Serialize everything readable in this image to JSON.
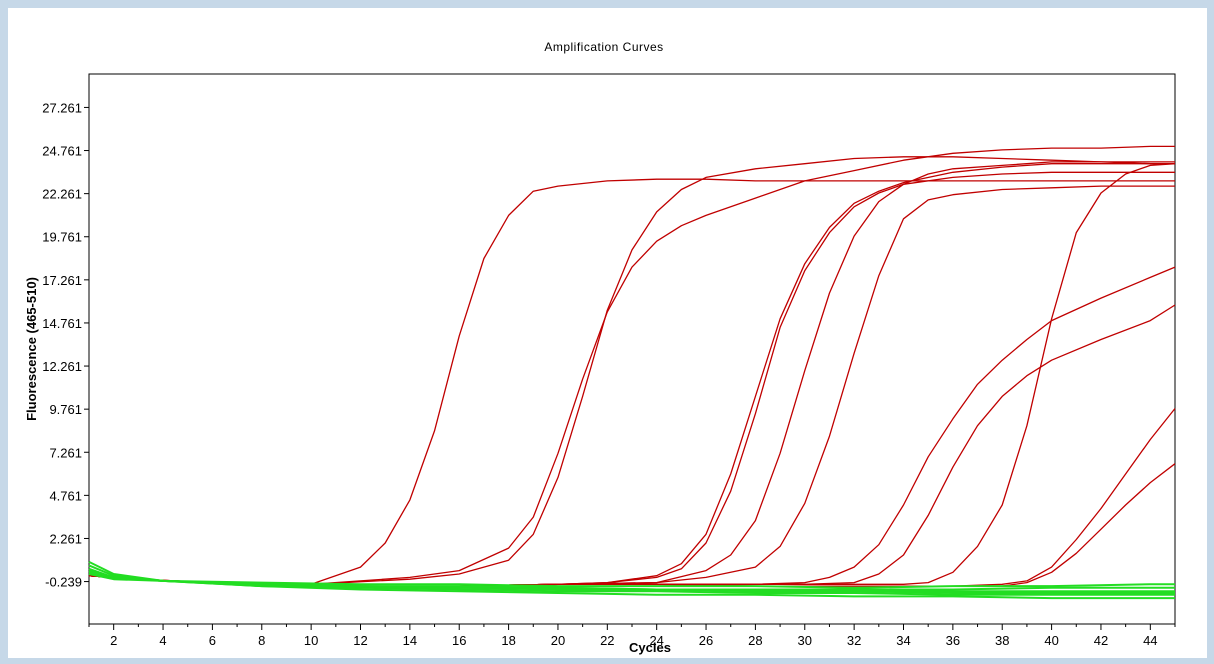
{
  "chart_data": {
    "type": "line",
    "title": "Amplification Curves",
    "xlabel": "Cycles",
    "ylabel": "Fluorescence (465-510)",
    "xlim": [
      1,
      45
    ],
    "ylim": [
      -2.7,
      29.2
    ],
    "x_ticks": [
      2,
      4,
      6,
      8,
      10,
      12,
      14,
      16,
      18,
      20,
      22,
      24,
      26,
      28,
      30,
      32,
      34,
      36,
      38,
      40,
      42,
      44
    ],
    "x_tick_labels": [
      "2",
      "4",
      "6",
      "8",
      "10",
      "12",
      "14",
      "16",
      "18",
      "20",
      "22",
      "24",
      "26",
      "28",
      "30",
      "32",
      "34",
      "36",
      "38",
      "40",
      "42",
      "44"
    ],
    "y_ticks": [
      -0.239,
      2.261,
      4.761,
      7.261,
      9.761,
      12.261,
      14.761,
      17.261,
      19.761,
      22.261,
      24.761,
      27.261
    ],
    "y_tick_labels": [
      "-0.239",
      "2.261",
      "4.761",
      "7.261",
      "9.761",
      "12.261",
      "14.761",
      "17.261",
      "19.761",
      "22.261",
      "24.761",
      "27.261"
    ],
    "grid": false,
    "legend": "none",
    "colors": {
      "positive": "#c00000",
      "negative": "#22dd22",
      "background": "#c6d8e8"
    },
    "series": [
      {
        "color": "#c00000",
        "x": [
          1,
          3,
          6,
          10,
          12,
          13,
          14,
          15,
          16,
          17,
          18,
          19,
          20,
          22,
          24,
          26,
          28,
          30,
          33,
          36,
          40,
          44,
          45
        ],
        "y": [
          0.1,
          -0.1,
          -0.3,
          -0.4,
          0.6,
          2.0,
          4.5,
          8.5,
          14.0,
          18.5,
          21.0,
          22.4,
          22.7,
          23.0,
          23.1,
          23.1,
          23.0,
          23.0,
          23.0,
          23.0,
          23.0,
          23.0,
          23.0
        ]
      },
      {
        "color": "#c00000",
        "x": [
          1,
          3,
          6,
          10,
          14,
          16,
          18,
          19,
          20,
          21,
          22,
          23,
          24,
          25,
          26,
          28,
          30,
          32,
          34,
          36,
          38,
          40,
          42,
          44,
          45
        ],
        "y": [
          0.1,
          -0.1,
          -0.3,
          -0.4,
          0.0,
          0.4,
          1.7,
          3.5,
          7.2,
          11.5,
          15.4,
          18.0,
          19.5,
          20.4,
          21.0,
          22.0,
          23.0,
          23.6,
          24.2,
          24.6,
          24.8,
          24.9,
          24.9,
          25.0,
          25.0
        ]
      },
      {
        "color": "#c00000",
        "x": [
          1,
          3,
          6,
          10,
          14,
          16,
          18,
          19,
          20,
          21,
          22,
          23,
          24,
          25,
          26,
          28,
          30,
          32,
          34,
          36,
          38,
          40,
          42,
          44,
          45
        ],
        "y": [
          0.1,
          -0.1,
          -0.3,
          -0.4,
          -0.1,
          0.2,
          1.0,
          2.5,
          5.8,
          10.5,
          15.5,
          19.0,
          21.2,
          22.5,
          23.2,
          23.7,
          24.0,
          24.3,
          24.4,
          24.4,
          24.3,
          24.2,
          24.1,
          24.0,
          24.0
        ]
      },
      {
        "color": "#c00000",
        "x": [
          1,
          4,
          8,
          12,
          16,
          20,
          22,
          24,
          25,
          26,
          27,
          28,
          29,
          30,
          31,
          32,
          33,
          34,
          36,
          38,
          40,
          42,
          44,
          45
        ],
        "y": [
          0.1,
          -0.2,
          -0.4,
          -0.5,
          -0.5,
          -0.4,
          -0.3,
          0.1,
          0.8,
          2.5,
          6.0,
          10.5,
          15.0,
          18.2,
          20.3,
          21.7,
          22.4,
          22.9,
          23.5,
          23.8,
          24.0,
          24.0,
          24.0,
          24.0
        ]
      },
      {
        "color": "#c00000",
        "x": [
          1,
          4,
          8,
          12,
          16,
          20,
          22,
          24,
          25,
          26,
          27,
          28,
          29,
          30,
          31,
          32,
          33,
          34,
          36,
          38,
          40,
          42,
          44,
          45
        ],
        "y": [
          0.1,
          -0.2,
          -0.4,
          -0.5,
          -0.5,
          -0.4,
          -0.3,
          0.0,
          0.5,
          2.0,
          5.0,
          9.5,
          14.5,
          17.8,
          20.0,
          21.5,
          22.3,
          22.8,
          23.2,
          23.4,
          23.5,
          23.5,
          23.5,
          23.5
        ]
      },
      {
        "color": "#c00000",
        "x": [
          1,
          4,
          8,
          12,
          16,
          20,
          24,
          26,
          27,
          28,
          29,
          30,
          31,
          32,
          33,
          34,
          35,
          36,
          38,
          40,
          42,
          44,
          45
        ],
        "y": [
          0.1,
          -0.2,
          -0.4,
          -0.5,
          -0.5,
          -0.4,
          -0.3,
          0.4,
          1.3,
          3.3,
          7.2,
          12.0,
          16.5,
          19.8,
          21.8,
          22.8,
          23.4,
          23.7,
          23.9,
          24.1,
          24.1,
          24.1,
          24.1
        ]
      },
      {
        "color": "#c00000",
        "x": [
          1,
          4,
          8,
          12,
          16,
          20,
          24,
          26,
          28,
          29,
          30,
          31,
          32,
          33,
          34,
          35,
          36,
          38,
          40,
          42,
          44,
          45
        ],
        "y": [
          0.1,
          -0.2,
          -0.4,
          -0.5,
          -0.5,
          -0.4,
          -0.3,
          0.0,
          0.6,
          1.8,
          4.3,
          8.2,
          13.0,
          17.5,
          20.8,
          21.9,
          22.2,
          22.5,
          22.6,
          22.7,
          22.7,
          22.7
        ]
      },
      {
        "color": "#c00000",
        "x": [
          1,
          4,
          8,
          12,
          16,
          20,
          24,
          28,
          30,
          31,
          32,
          33,
          34,
          35,
          36,
          37,
          38,
          39,
          40,
          42,
          44,
          45
        ],
        "y": [
          0.1,
          -0.2,
          -0.4,
          -0.5,
          -0.5,
          -0.4,
          -0.4,
          -0.4,
          -0.3,
          0.0,
          0.6,
          1.9,
          4.2,
          7.0,
          9.2,
          11.2,
          12.6,
          13.8,
          14.9,
          16.2,
          17.4,
          18.0
        ]
      },
      {
        "color": "#c00000",
        "x": [
          1,
          4,
          8,
          12,
          16,
          20,
          24,
          28,
          30,
          32,
          33,
          34,
          35,
          36,
          37,
          38,
          39,
          40,
          42,
          44,
          45
        ],
        "y": [
          0.1,
          -0.2,
          -0.4,
          -0.5,
          -0.5,
          -0.4,
          -0.4,
          -0.4,
          -0.4,
          -0.3,
          0.2,
          1.3,
          3.6,
          6.4,
          8.8,
          10.5,
          11.7,
          12.6,
          13.8,
          14.9,
          15.8
        ]
      },
      {
        "color": "#c00000",
        "x": [
          1,
          4,
          8,
          12,
          16,
          20,
          24,
          28,
          32,
          34,
          35,
          36,
          37,
          38,
          39,
          40,
          41,
          42,
          43,
          44,
          45
        ],
        "y": [
          0.1,
          -0.2,
          -0.4,
          -0.5,
          -0.5,
          -0.4,
          -0.4,
          -0.4,
          -0.4,
          -0.4,
          -0.3,
          0.3,
          1.8,
          4.2,
          8.8,
          15.0,
          20.0,
          22.3,
          23.4,
          23.9,
          24.0
        ]
      },
      {
        "color": "#c00000",
        "x": [
          1,
          4,
          8,
          12,
          16,
          20,
          24,
          28,
          32,
          36,
          38,
          39,
          40,
          41,
          42,
          43,
          44,
          45
        ],
        "y": [
          0.1,
          -0.2,
          -0.4,
          -0.5,
          -0.5,
          -0.4,
          -0.4,
          -0.5,
          -0.5,
          -0.5,
          -0.4,
          -0.2,
          0.6,
          2.2,
          4.0,
          6.0,
          8.0,
          9.8
        ]
      },
      {
        "color": "#c00000",
        "x": [
          1,
          4,
          8,
          12,
          16,
          20,
          24,
          28,
          32,
          36,
          38,
          39,
          40,
          41,
          42,
          43,
          44,
          45
        ],
        "y": [
          0.1,
          -0.2,
          -0.4,
          -0.5,
          -0.5,
          -0.4,
          -0.4,
          -0.5,
          -0.5,
          -0.5,
          -0.5,
          -0.3,
          0.3,
          1.4,
          2.8,
          4.2,
          5.5,
          6.6
        ]
      },
      {
        "color": "#22dd22",
        "x": [
          1,
          2,
          4,
          8,
          12,
          16,
          20,
          24,
          28,
          32,
          36,
          40,
          44,
          45
        ],
        "y": [
          0.9,
          0.2,
          -0.2,
          -0.4,
          -0.5,
          -0.6,
          -0.6,
          -0.7,
          -0.7,
          -0.8,
          -0.8,
          -0.8,
          -0.8,
          -0.8
        ]
      },
      {
        "color": "#22dd22",
        "x": [
          1,
          2,
          4,
          8,
          12,
          16,
          20,
          24,
          28,
          32,
          36,
          40,
          44,
          45
        ],
        "y": [
          0.7,
          0.1,
          -0.2,
          -0.5,
          -0.6,
          -0.7,
          -0.8,
          -0.8,
          -0.9,
          -0.9,
          -1.0,
          -1.0,
          -1.0,
          -1.0
        ]
      },
      {
        "color": "#22dd22",
        "x": [
          1,
          2,
          4,
          8,
          12,
          16,
          20,
          24,
          28,
          32,
          36,
          40,
          44,
          45
        ],
        "y": [
          0.5,
          0.0,
          -0.2,
          -0.3,
          -0.4,
          -0.4,
          -0.5,
          -0.5,
          -0.5,
          -0.6,
          -0.5,
          -0.5,
          -0.4,
          -0.4
        ]
      },
      {
        "color": "#22dd22",
        "x": [
          1,
          2,
          4,
          8,
          12,
          16,
          20,
          24,
          28,
          32,
          36,
          40,
          44,
          45
        ],
        "y": [
          0.4,
          0.0,
          -0.2,
          -0.4,
          -0.5,
          -0.5,
          -0.6,
          -0.7,
          -0.7,
          -0.7,
          -0.7,
          -0.6,
          -0.6,
          -0.6
        ]
      },
      {
        "color": "#22dd22",
        "x": [
          1,
          2,
          4,
          8,
          12,
          16,
          20,
          24,
          28,
          32,
          36,
          40,
          44,
          45
        ],
        "y": [
          0.3,
          0.0,
          -0.2,
          -0.5,
          -0.7,
          -0.8,
          -0.9,
          -1.0,
          -1.0,
          -1.1,
          -1.1,
          -1.2,
          -1.2,
          -1.2
        ]
      },
      {
        "color": "#22dd22",
        "x": [
          1,
          2,
          4,
          8,
          12,
          16,
          20,
          24,
          28,
          32,
          36,
          40,
          44,
          45
        ],
        "y": [
          0.2,
          -0.1,
          -0.2,
          -0.4,
          -0.5,
          -0.6,
          -0.7,
          -0.7,
          -0.8,
          -0.8,
          -0.9,
          -0.9,
          -0.9,
          -0.9
        ]
      }
    ]
  }
}
